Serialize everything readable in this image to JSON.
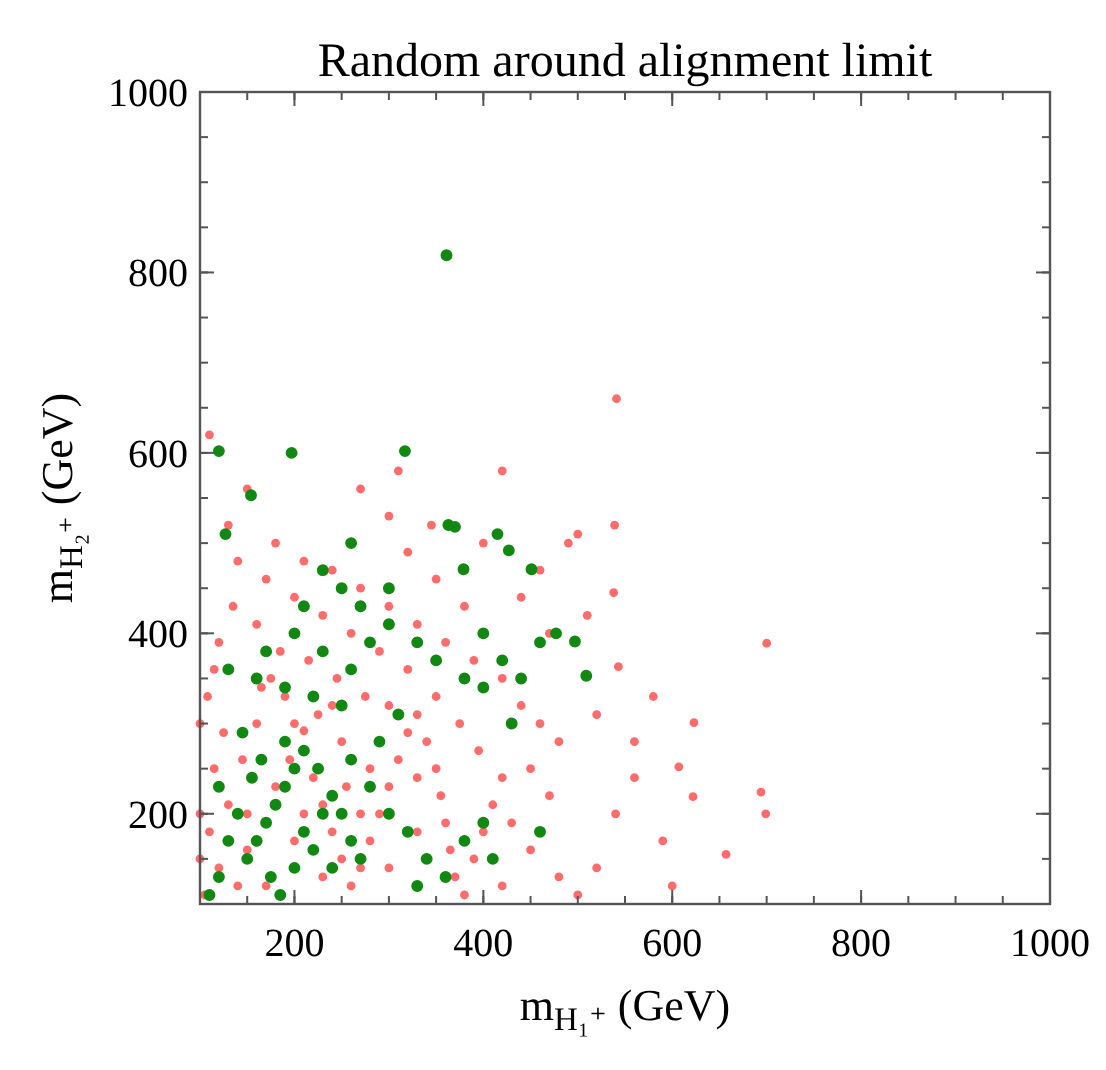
{
  "chart_data": {
    "type": "scatter",
    "title": "Random around alignment limit",
    "xlabel": "m$_{H₁⁺}$ (GeV)",
    "ylabel": "m$_{H₂⁺}$ (GeV)",
    "xlim": [
      100,
      1000
    ],
    "ylim": [
      100,
      1000
    ],
    "xticks": [
      200,
      400,
      600,
      800,
      1000
    ],
    "yticks": [
      200,
      400,
      600,
      800,
      1000
    ],
    "grid": false,
    "marker": "circle",
    "series": [
      {
        "color": "#ff3b3b",
        "x": [
          105,
          120,
          110,
          130,
          115,
          125,
          108,
          140,
          150,
          145,
          160,
          170,
          175,
          190,
          200,
          210,
          220,
          230,
          240,
          250,
          260,
          270,
          280,
          290,
          300,
          310,
          320,
          330,
          340,
          350,
          355,
          360,
          365,
          370,
          380,
          390,
          400,
          410,
          420,
          395,
          375,
          350,
          320,
          290,
          260,
          230,
          200,
          170,
          140,
          120,
          135,
          160,
          185,
          215,
          245,
          275,
          300,
          130,
          150,
          110,
          180,
          210,
          240,
          270,
          300,
          330,
          360,
          390,
          420,
          440,
          460,
          480,
          450,
          470,
          430,
          450,
          480,
          500,
          420,
          440,
          460,
          490,
          500,
          470,
          510,
          380,
          350,
          320,
          300,
          270,
          310,
          345,
          400,
          420,
          541,
          539,
          538,
          543,
          623,
          607,
          700,
          694,
          699,
          657,
          622,
          580,
          560,
          590,
          540,
          520,
          600,
          560,
          520,
          150,
          180,
          200,
          230,
          250,
          280,
          195,
          165,
          240,
          270,
          330,
          300,
          210,
          225,
          255,
          330,
          115,
          100,
          100,
          100
        ],
        "values": [
          110,
          140,
          180,
          210,
          250,
          290,
          330,
          120,
          160,
          260,
          300,
          120,
          350,
          330,
          300,
          292,
          240,
          210,
          180,
          150,
          120,
          140,
          170,
          200,
          230,
          260,
          290,
          310,
          280,
          250,
          220,
          190,
          160,
          130,
          110,
          150,
          180,
          210,
          240,
          270,
          300,
          330,
          360,
          380,
          400,
          420,
          440,
          460,
          480,
          390,
          430,
          410,
          380,
          370,
          350,
          330,
          320,
          520,
          560,
          620,
          500,
          480,
          470,
          450,
          430,
          410,
          390,
          370,
          350,
          320,
          300,
          280,
          250,
          220,
          190,
          160,
          130,
          110,
          120,
          440,
          470,
          500,
          510,
          400,
          420,
          430,
          460,
          490,
          530,
          560,
          580,
          520,
          500,
          580,
          660,
          520,
          445,
          363,
          301,
          252,
          389,
          224,
          200,
          155,
          219,
          330,
          280,
          170,
          200,
          140,
          120,
          240,
          310,
          200,
          230,
          170,
          130,
          280,
          250,
          260,
          340,
          320,
          200,
          180,
          140,
          200,
          310,
          230,
          240,
          360,
          300,
          200,
          150
        ]
      },
      {
        "color": "#118811",
        "x": [
          150,
          160,
          170,
          180,
          190,
          200,
          210,
          220,
          230,
          240,
          175,
          185,
          200,
          140,
          130,
          120,
          110,
          155,
          165,
          210,
          250,
          260,
          270,
          240,
          120,
          145,
          190,
          225,
          260,
          280,
          300,
          320,
          340,
          360,
          330,
          380,
          400,
          290,
          310,
          250,
          220,
          190,
          160,
          130,
          170,
          200,
          230,
          260,
          280,
          300,
          330,
          350,
          380,
          400,
          420,
          440,
          460,
          477,
          497,
          509,
          451,
          379,
          427,
          415,
          363,
          370,
          317,
          197,
          127,
          154,
          120,
          361,
          250,
          230,
          270,
          300,
          210,
          260,
          400,
          430,
          460,
          410
        ],
        "values": [
          150,
          170,
          190,
          210,
          230,
          250,
          180,
          160,
          200,
          220,
          130,
          110,
          140,
          200,
          170,
          130,
          110,
          240,
          260,
          270,
          200,
          170,
          150,
          140,
          230,
          290,
          280,
          250,
          260,
          230,
          200,
          180,
          150,
          130,
          120,
          170,
          190,
          280,
          310,
          320,
          330,
          340,
          350,
          360,
          380,
          400,
          380,
          360,
          390,
          410,
          390,
          370,
          350,
          340,
          370,
          350,
          390,
          400,
          391,
          353,
          471,
          471,
          492,
          510,
          520,
          518,
          602,
          600,
          510,
          553,
          602,
          819,
          450,
          470,
          430,
          450,
          430,
          500,
          400,
          300,
          180,
          150
        ]
      }
    ]
  }
}
